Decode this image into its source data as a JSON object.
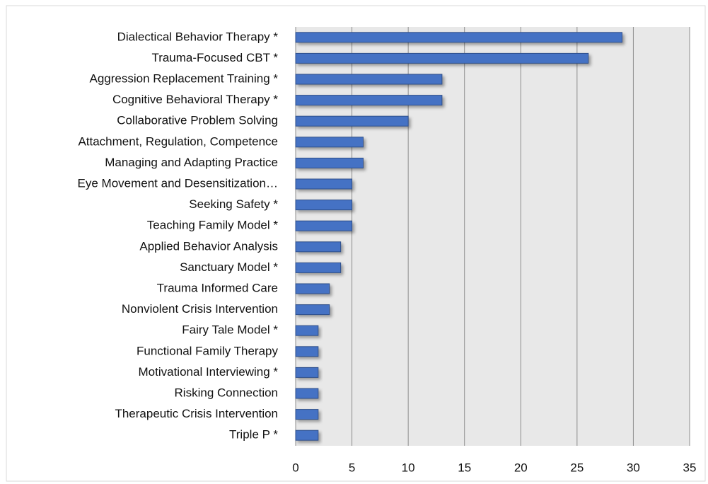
{
  "chart_data": {
    "type": "bar",
    "orientation": "horizontal",
    "categories": [
      "Dialectical Behavior Therapy *",
      "Trauma-Focused CBT *",
      "Aggression Replacement Training *",
      "Cognitive Behavioral Therapy *",
      "Collaborative Problem Solving",
      "Attachment, Regulation, Competence",
      "Managing and Adapting Practice",
      "Eye Movement and Desensitization…",
      "Seeking Safety *",
      "Teaching Family Model *",
      "Applied Behavior Analysis",
      "Sanctuary Model *",
      "Trauma Informed Care",
      "Nonviolent Crisis Intervention",
      "Fairy Tale Model *",
      "Functional Family Therapy",
      "Motivational Interviewing *",
      "Risking Connection",
      "Therapeutic Crisis Intervention",
      "Triple P *"
    ],
    "values": [
      29,
      26,
      13,
      13,
      10,
      6,
      6,
      5,
      5,
      5,
      4,
      4,
      3,
      3,
      2,
      2,
      2,
      2,
      2,
      2
    ],
    "color": "#4472c4",
    "xlim": [
      0,
      35
    ],
    "xticks": [
      0,
      5,
      10,
      15,
      20,
      25,
      30,
      35
    ],
    "grid": true
  }
}
